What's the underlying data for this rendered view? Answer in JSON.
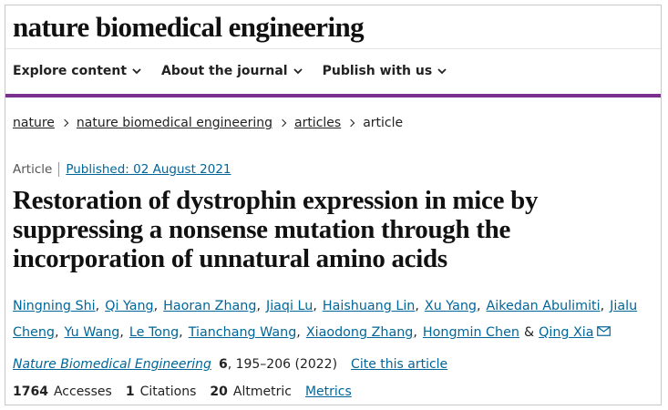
{
  "header": {
    "title": "nature biomedical engineering"
  },
  "nav": [
    "Explore content",
    "About the journal",
    "Publish with us"
  ],
  "breadcrumb": [
    "nature",
    "nature biomedical engineering",
    "articles",
    "article"
  ],
  "article": {
    "type": "Article",
    "published": "Published: 02 August 2021",
    "title": "Restoration of dystrophin expression in mice by suppressing a nonsense mutation through the incorporation of unnatural amino acids"
  },
  "authors": {
    "names": [
      "Ningning Shi",
      "Qi Yang",
      "Haoran Zhang",
      "Jiaqi Lu",
      "Haishuang Lin",
      "Xu Yang",
      "Aikedan Abulimiti",
      "Jialu Cheng",
      "Yu Wang",
      "Le Tong",
      "Tianchang Wang",
      "Xiaodong Zhang",
      "Hongmin Chen",
      "Qing Xia"
    ],
    "separator": ",",
    "last_separator": "&"
  },
  "citation": {
    "journal": "Nature Biomedical Engineering",
    "volume": "6",
    "pages": ", 195–206 (2022)",
    "cite": "Cite this article"
  },
  "metrics": {
    "accesses": 1764,
    "accesses_label": "Accesses",
    "citations": 1,
    "citations_label": "Citations",
    "altmetric": 20,
    "altmetric_label": "Altmetric",
    "link": "Metrics"
  }
}
